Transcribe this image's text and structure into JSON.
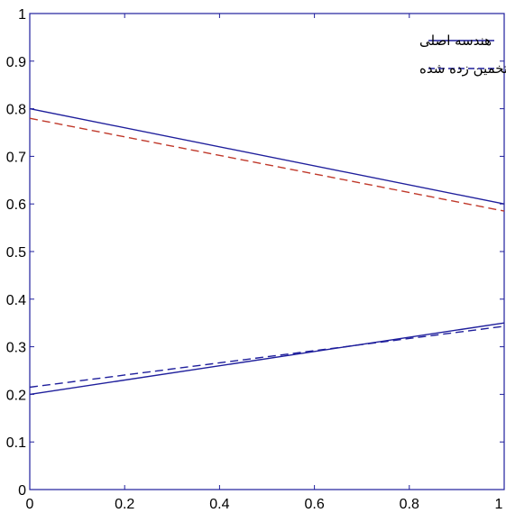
{
  "chart_data": {
    "type": "line",
    "xlim": [
      0,
      1
    ],
    "ylim": [
      0,
      1
    ],
    "xticks": [
      "0",
      "0.2",
      "0.4",
      "0.6",
      "0.8",
      "1"
    ],
    "yticks": [
      "0",
      "0.1",
      "0.2",
      "0.3",
      "0.4",
      "0.5",
      "0.6",
      "0.7",
      "0.8",
      "0.9",
      "1"
    ],
    "grid": false,
    "legend_position": "top-right",
    "legend": [
      {
        "label": "هندسه اصلی",
        "style": "solid",
        "color": "#1f1f9c"
      },
      {
        "label": "هندسه تخمین زده شده",
        "style": "dashed",
        "color": "#1f1f9c"
      }
    ],
    "series": [
      {
        "style": "solid",
        "color": "#1f1f9c",
        "x": [
          0,
          1
        ],
        "y": [
          0.8,
          0.6
        ]
      },
      {
        "style": "dashed",
        "color": "#c0392b",
        "x": [
          0,
          1
        ],
        "y": [
          0.78,
          0.585
        ]
      },
      {
        "style": "solid",
        "color": "#1f1f9c",
        "x": [
          0,
          1
        ],
        "y": [
          0.2,
          0.35
        ]
      },
      {
        "style": "dashed",
        "color": "#1f1f9c",
        "x": [
          0,
          1
        ],
        "y": [
          0.215,
          0.343
        ]
      }
    ]
  }
}
